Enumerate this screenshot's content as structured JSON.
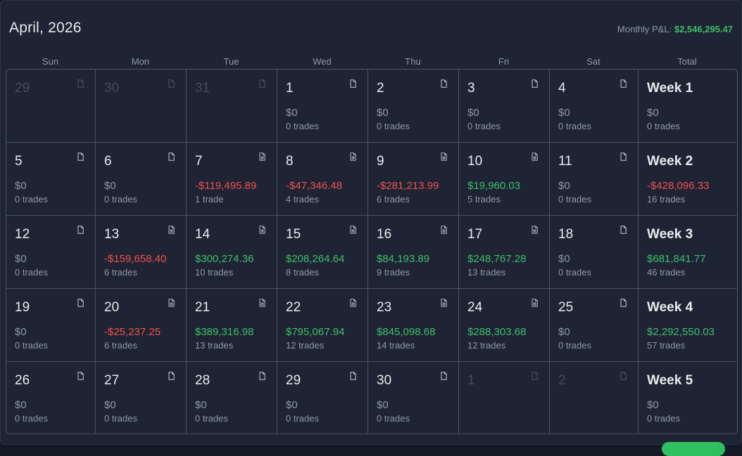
{
  "header": {
    "title": "April, 2026",
    "pnl_label": "Monthly P&L:",
    "pnl_value": "$2,546,295.47"
  },
  "colors": {
    "positive": "#3fbe6a",
    "negative": "#f0504e",
    "neutral": "#8f98ab"
  },
  "day_headers": [
    "Sun",
    "Mon",
    "Tue",
    "Wed",
    "Thu",
    "Fri",
    "Sat",
    "Total"
  ],
  "weeks": [
    [
      {
        "day": "29",
        "muted": true,
        "icon": "file-icon"
      },
      {
        "day": "30",
        "muted": true,
        "icon": "file-icon"
      },
      {
        "day": "31",
        "muted": true,
        "icon": "file-icon"
      },
      {
        "day": "1",
        "amount": "$0",
        "trades": "0 trades",
        "icon": "file-icon"
      },
      {
        "day": "2",
        "amount": "$0",
        "trades": "0 trades",
        "icon": "file-icon"
      },
      {
        "day": "3",
        "amount": "$0",
        "trades": "0 trades",
        "icon": "file-icon"
      },
      {
        "day": "4",
        "amount": "$0",
        "trades": "0 trades",
        "icon": "file-icon"
      },
      {
        "day": "Week 1",
        "amount": "$0",
        "trades": "0 trades",
        "week": true
      }
    ],
    [
      {
        "day": "5",
        "amount": "$0",
        "trades": "0 trades",
        "icon": "file-icon"
      },
      {
        "day": "6",
        "amount": "$0",
        "trades": "0 trades",
        "icon": "file-icon"
      },
      {
        "day": "7",
        "amount": "-$119,495.89",
        "trades": "1 trade",
        "sign": "neg",
        "icon": "file-text-icon"
      },
      {
        "day": "8",
        "amount": "-$47,346.48",
        "trades": "4 trades",
        "sign": "neg",
        "icon": "file-text-icon"
      },
      {
        "day": "9",
        "amount": "-$281,213.99",
        "trades": "6 trades",
        "sign": "neg",
        "icon": "file-text-icon"
      },
      {
        "day": "10",
        "amount": "$19,960.03",
        "trades": "5 trades",
        "sign": "pos",
        "icon": "file-text-icon"
      },
      {
        "day": "11",
        "amount": "$0",
        "trades": "0 trades",
        "icon": "file-icon"
      },
      {
        "day": "Week 2",
        "amount": "-$428,096.33",
        "trades": "16 trades",
        "sign": "neg",
        "week": true
      }
    ],
    [
      {
        "day": "12",
        "amount": "$0",
        "trades": "0 trades",
        "icon": "file-icon"
      },
      {
        "day": "13",
        "amount": "-$159,658.40",
        "trades": "6 trades",
        "sign": "neg",
        "icon": "file-text-icon"
      },
      {
        "day": "14",
        "amount": "$300,274.36",
        "trades": "10 trades",
        "sign": "pos",
        "icon": "file-text-icon"
      },
      {
        "day": "15",
        "amount": "$208,264.64",
        "trades": "8 trades",
        "sign": "pos",
        "icon": "file-text-icon"
      },
      {
        "day": "16",
        "amount": "$84,193.89",
        "trades": "9 trades",
        "sign": "pos",
        "icon": "file-text-icon"
      },
      {
        "day": "17",
        "amount": "$248,767.28",
        "trades": "13 trades",
        "sign": "pos",
        "icon": "file-text-icon"
      },
      {
        "day": "18",
        "amount": "$0",
        "trades": "0 trades",
        "icon": "file-icon"
      },
      {
        "day": "Week 3",
        "amount": "$681,841.77",
        "trades": "46 trades",
        "sign": "pos",
        "week": true
      }
    ],
    [
      {
        "day": "19",
        "amount": "$0",
        "trades": "0 trades",
        "icon": "file-icon"
      },
      {
        "day": "20",
        "amount": "-$25,237.25",
        "trades": "6 trades",
        "sign": "neg",
        "icon": "file-text-icon"
      },
      {
        "day": "21",
        "amount": "$389,316.98",
        "trades": "13 trades",
        "sign": "pos",
        "icon": "file-text-icon"
      },
      {
        "day": "22",
        "amount": "$795,067.94",
        "trades": "12 trades",
        "sign": "pos",
        "icon": "file-text-icon"
      },
      {
        "day": "23",
        "amount": "$845,098.68",
        "trades": "14 trades",
        "sign": "pos",
        "icon": "file-text-icon"
      },
      {
        "day": "24",
        "amount": "$288,303.68",
        "trades": "12 trades",
        "sign": "pos",
        "icon": "file-text-icon"
      },
      {
        "day": "25",
        "amount": "$0",
        "trades": "0 trades",
        "icon": "file-icon"
      },
      {
        "day": "Week 4",
        "amount": "$2,292,550.03",
        "trades": "57 trades",
        "sign": "pos",
        "week": true
      }
    ],
    [
      {
        "day": "26",
        "amount": "$0",
        "trades": "0 trades",
        "icon": "file-icon"
      },
      {
        "day": "27",
        "amount": "$0",
        "trades": "0 trades",
        "icon": "file-icon"
      },
      {
        "day": "28",
        "amount": "$0",
        "trades": "0 trades",
        "icon": "file-icon"
      },
      {
        "day": "29",
        "amount": "$0",
        "trades": "0 trades",
        "icon": "file-icon"
      },
      {
        "day": "30",
        "amount": "$0",
        "trades": "0 trades",
        "icon": "file-icon"
      },
      {
        "day": "1",
        "muted": true,
        "icon": "file-icon"
      },
      {
        "day": "2",
        "muted": true,
        "icon": "file-icon"
      },
      {
        "day": "Week 5",
        "amount": "$0",
        "trades": "0 trades",
        "week": true
      }
    ]
  ]
}
